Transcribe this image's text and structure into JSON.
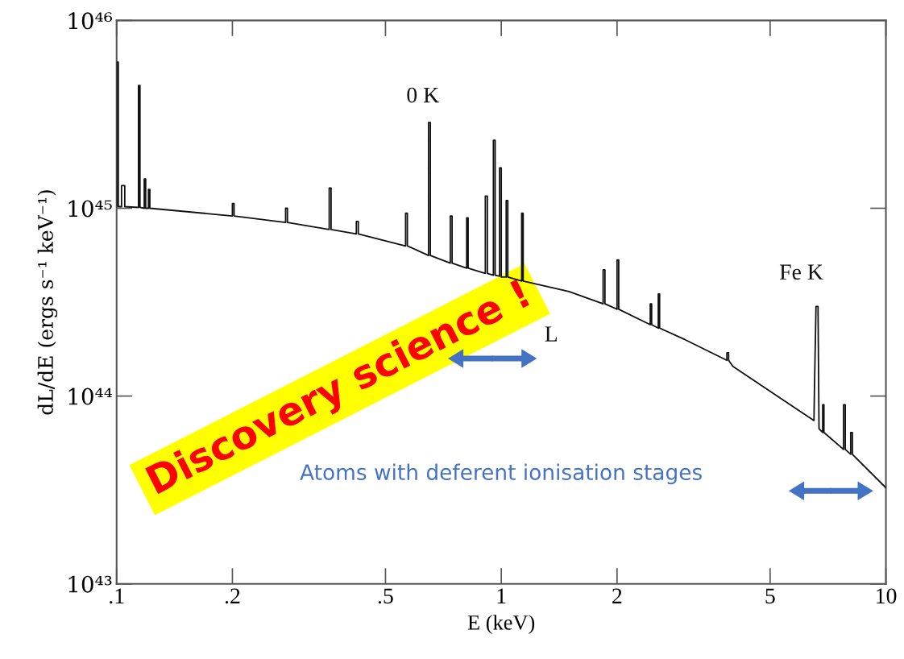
{
  "chart_data": {
    "type": "line",
    "xlabel": "E (keV)",
    "ylabel": "dL/dE (ergs s⁻¹ keV⁻¹)",
    "log": "xy",
    "xlim": [
      0.1,
      10
    ],
    "ylim": [
      1e+43,
      1e+46
    ],
    "xticks": [
      {
        "value": 0.1,
        "label": ".1"
      },
      {
        "value": 0.2,
        "label": ".2"
      },
      {
        "value": 0.5,
        "label": ".5"
      },
      1,
      2,
      5,
      10
    ],
    "yticks": [
      {
        "value": 1e+43,
        "label": "10⁴³"
      },
      {
        "value": 1e+44,
        "label": "10⁴⁴"
      },
      {
        "value": 1e+45,
        "label": "10⁴⁵"
      },
      {
        "value": 1e+46,
        "label": "10⁴⁶"
      }
    ],
    "annotations": [
      "0 K",
      "L",
      "Fe K",
      "Discovery science !",
      "Atoms with deferent ionisation stages"
    ],
    "x": [
      0.1,
      0.1,
      0.101,
      0.101,
      0.103,
      0.103,
      0.105,
      0.105,
      0.114,
      0.114,
      0.115,
      0.115,
      0.118,
      0.118,
      0.119,
      0.119,
      0.121,
      0.121,
      0.122,
      0.122,
      0.2,
      0.2,
      0.202,
      0.202,
      0.275,
      0.275,
      0.278,
      0.278,
      0.357,
      0.357,
      0.361,
      0.361,
      0.42,
      0.42,
      0.425,
      0.425,
      0.564,
      0.564,
      0.57,
      0.57,
      0.647,
      0.647,
      0.654,
      0.654,
      0.737,
      0.737,
      0.745,
      0.745,
      0.813,
      0.813,
      0.82,
      0.82,
      0.909,
      0.909,
      0.92,
      0.92,
      0.954,
      0.954,
      0.964,
      0.964,
      0.99,
      0.99,
      1.0,
      1.0,
      1.03,
      1.03,
      1.04,
      1.04,
      1.13,
      1.13,
      1.14,
      1.14,
      1.5,
      1.84,
      1.84,
      1.86,
      1.86,
      2.0,
      2.0,
      2.02,
      2.02,
      2.44,
      2.44,
      2.46,
      2.46,
      2.56,
      2.56,
      2.58,
      2.58,
      3.0,
      3.86,
      3.86,
      3.9,
      3.9,
      4.0,
      6.5,
      6.52,
      6.58,
      6.66,
      6.7,
      6.85,
      6.85,
      6.9,
      6.9,
      7.76,
      7.76,
      7.84,
      7.84,
      8.1,
      8.1,
      8.18,
      8.18,
      10
    ],
    "series": [
      {
        "color": "#111111",
        "values": [
          1.03e+45,
          6e+45,
          6e+45,
          1.02e+45,
          1.02e+45,
          1.32e+45,
          1.32e+45,
          1.02e+45,
          1.01e+45,
          4.5e+45,
          4.5e+45,
          1.01e+45,
          1e+45,
          1.43e+45,
          1.43e+45,
          1e+45,
          1e+45,
          1.26e+45,
          1.26e+45,
          1e+45,
          9.1e+44,
          1.06e+45,
          1.06e+45,
          9.1e+44,
          8.4e+44,
          1e+45,
          1e+45,
          8.4e+44,
          7.7e+44,
          1.28e+45,
          1.28e+45,
          7.7e+44,
          7.3e+44,
          8.5e+44,
          8.5e+44,
          7.3e+44,
          6.3e+44,
          9.4e+44,
          9.4e+44,
          6.3e+44,
          5.6e+44,
          2.86e+45,
          2.86e+45,
          5.6e+44,
          5.1e+44,
          9.1e+44,
          9.1e+44,
          5.1e+44,
          4.8e+44,
          8.9e+44,
          8.9e+44,
          4.8e+44,
          4.5e+44,
          1.16e+45,
          1.16e+45,
          4.5e+44,
          4.4e+44,
          2.3e+45,
          2.3e+45,
          4.4e+44,
          4.35e+44,
          1.64e+45,
          1.64e+45,
          4.3e+44,
          4.3e+44,
          1.1e+45,
          1.1e+45,
          4.3e+44,
          4.1e+44,
          9.4e+44,
          9.4e+44,
          4.1e+44,
          3.6e+44,
          3.1e+44,
          4.7e+44,
          4.7e+44,
          3.1e+44,
          2.9e+44,
          5.3e+44,
          5.3e+44,
          2.9e+44,
          2.4e+44,
          3.1e+44,
          3.1e+44,
          2.4e+44,
          2.3e+44,
          3.5e+44,
          3.5e+44,
          2.3e+44,
          2e+44,
          1.55e+44,
          1.7e+44,
          1.7e+44,
          1.55e+44,
          1.44e+44,
          7.4e+43,
          1.1e+44,
          3e+44,
          3e+44,
          6.7e+43,
          6.4e+43,
          9e+43,
          9e+43,
          6.4e+43,
          5.2e+43,
          9e+43,
          9e+43,
          5.2e+43,
          4.9e+43,
          6.4e+43,
          6.4e+43,
          4.9e+43,
          3.25e+43
        ]
      }
    ]
  }
}
